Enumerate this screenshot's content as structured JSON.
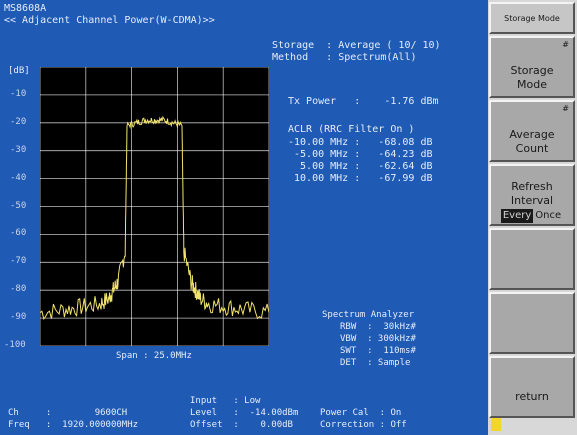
{
  "header": {
    "model": "MS8608A",
    "mode_title": "<< Adjacent Channel Power(W-CDMA)>>",
    "storage_line": "Storage  : Average ( 10/ 10)",
    "method_line": "Method   : Spectrum(All)"
  },
  "plot": {
    "unit": "[dB]",
    "y_ticks": [
      "-10",
      "-20",
      "-30",
      "-40",
      "-50",
      "-60",
      "-70",
      "-80",
      "-90",
      "-100"
    ],
    "span": "Span : 25.0MHz"
  },
  "chart_data": {
    "type": "line",
    "title": "",
    "xlabel": "",
    "ylabel": "[dB]",
    "x": [
      -12.5,
      -10,
      -8,
      -6,
      -5,
      -4.5,
      -4,
      -3.2,
      -3,
      -2,
      -1,
      0,
      1,
      2,
      3,
      3.2,
      4,
      4.5,
      5,
      6,
      8,
      10,
      12.5
    ],
    "series": [
      {
        "values": [
          -88,
          -87,
          -86,
          -85,
          -83,
          -80,
          -77,
          -66,
          -21,
          -20,
          -19,
          -19,
          -19,
          -20,
          -21,
          -66,
          -77,
          -80,
          -83,
          -85,
          -86,
          -87,
          -88
        ]
      }
    ],
    "xlim": [
      -12.5,
      12.5
    ],
    "ylim": [
      -100,
      0
    ],
    "grid": true
  },
  "results": {
    "tx_power_line": "Tx Power   :    -1.76 dBm",
    "aclr_header": "ACLR (RRC Filter On )",
    "aclr_rows": [
      "-10.00 MHz :   -68.08 dB",
      " -5.00 MHz :   -64.23 dB",
      "  5.00 MHz :   -62.64 dB",
      " 10.00 MHz :   -67.99 dB"
    ]
  },
  "analyzer": {
    "title": "Spectrum Analyzer",
    "rbw": "RBW  :  30kHz#",
    "vbw": "VBW  : 300kHz#",
    "swt": "SWT  :  110ms#",
    "det": "DET  : Sample"
  },
  "status": {
    "input_line": "Input   : Low",
    "ch_line": "Ch     :        9600CH",
    "freq_line": "Freq   :  1920.000000MHz",
    "level_line": "Level   :  -14.00dBm",
    "offset_line": "Offset  :    0.00dB",
    "powercal_line": "Power Cal  : On",
    "correction_line": "Correction : Off"
  },
  "softkeys": {
    "header": "Storage Mode",
    "marker": "#",
    "storage_mode": [
      "Storage",
      "Mode"
    ],
    "average_count": [
      "Average",
      "Count"
    ],
    "refresh": [
      "Refresh",
      "Interval"
    ],
    "refresh_every": "Every",
    "refresh_once": "Once",
    "return": "return"
  },
  "colors": {
    "screen_bg": "#1f5bb4",
    "trace": "#f2e36b",
    "grid": "#ffffff",
    "softkey_bg": "#a8a8a8",
    "marker_yellow": "#f2d629"
  }
}
